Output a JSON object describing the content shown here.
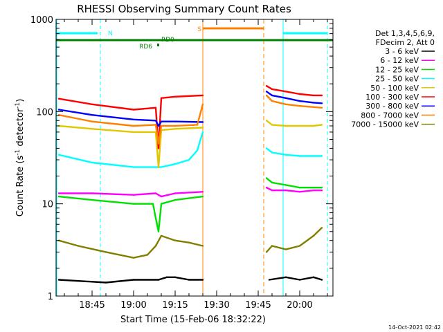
{
  "chart_data": {
    "type": "line",
    "title": "RHESSI Observing Summary Count Rates",
    "xlabel": "Start Time (15-Feb-06 18:32:22)",
    "ylabel": "Count Rate (s",
    "ylabel_sup": "-1",
    "ylabel_tail": " detector",
    "ylabel_end": ")",
    "yscale": "log",
    "ylim": [
      1,
      1000
    ],
    "xlim": [
      "18:32",
      "20:12"
    ],
    "xticks": [
      "18:45",
      "19:00",
      "19:15",
      "19:30",
      "19:45",
      "20:00"
    ],
    "yticks": [
      "1",
      "10",
      "100",
      "1000"
    ],
    "legend_header": [
      "Det 1,3,4,5,6,9,",
      "FDecim 2, Att 0"
    ],
    "legend_placement": "right",
    "series": [
      {
        "name": "3 - 6 keV",
        "color": "#000000",
        "segments": [
          {
            "x": [
              "18:33",
              "18:50",
              "19:00",
              "19:09",
              "19:12",
              "19:15",
              "19:20",
              "19:25"
            ],
            "y": [
              1.5,
              1.4,
              1.5,
              1.5,
              1.6,
              1.6,
              1.5,
              1.5
            ]
          },
          {
            "x": [
              "19:49",
              "19:55",
              "20:00",
              "20:05",
              "20:08"
            ],
            "y": [
              1.5,
              1.6,
              1.5,
              1.6,
              1.5
            ]
          }
        ]
      },
      {
        "name": "6 - 12 keV",
        "color": "#ff00ff",
        "segments": [
          {
            "x": [
              "18:33",
              "18:45",
              "19:00",
              "19:08",
              "19:10",
              "19:15",
              "19:25"
            ],
            "y": [
              13,
              13,
              12.5,
              13,
              12,
              13,
              13.5
            ]
          },
          {
            "x": [
              "19:48",
              "19:50",
              "19:55",
              "20:00",
              "20:05",
              "20:08"
            ],
            "y": [
              15,
              14,
              14,
              13.5,
              14,
              14
            ]
          }
        ]
      },
      {
        "name": "12 - 25 keV",
        "color": "#00e000",
        "segments": [
          {
            "x": [
              "18:33",
              "18:45",
              "19:00",
              "19:07",
              "19:08",
              "19:09",
              "19:10",
              "19:15",
              "19:25"
            ],
            "y": [
              12,
              11,
              10,
              10,
              7,
              5,
              10,
              11,
              12
            ]
          },
          {
            "x": [
              "19:48",
              "19:50",
              "19:55",
              "20:00",
              "20:05",
              "20:08"
            ],
            "y": [
              19,
              17,
              16,
              15,
              15,
              15
            ]
          }
        ]
      },
      {
        "name": "25 - 50 keV",
        "color": "#00ffff",
        "segments": [
          {
            "x": [
              "18:33",
              "18:45",
              "19:00",
              "19:10",
              "19:15",
              "19:20",
              "19:23",
              "19:25"
            ],
            "y": [
              34,
              28,
              25,
              25,
              27,
              30,
              38,
              60
            ]
          },
          {
            "x": [
              "19:48",
              "19:50",
              "19:55",
              "20:00",
              "20:05",
              "20:08"
            ],
            "y": [
              40,
              36,
              34,
              33,
              33,
              33
            ]
          }
        ]
      },
      {
        "name": "50 - 100 keV",
        "color": "#e0c800",
        "segments": [
          {
            "x": [
              "18:33",
              "18:45",
              "19:00",
              "19:08",
              "19:09",
              "19:10",
              "19:15",
              "19:25"
            ],
            "y": [
              70,
              65,
              60,
              60,
              25,
              63,
              65,
              67
            ]
          },
          {
            "x": [
              "19:48",
              "19:50",
              "19:55",
              "20:00",
              "20:05",
              "20:08"
            ],
            "y": [
              80,
              72,
              70,
              70,
              70,
              72
            ]
          }
        ]
      },
      {
        "name": "100 - 300 keV",
        "color": "#ff0000",
        "segments": [
          {
            "x": [
              "18:33",
              "18:45",
              "19:00",
              "19:08",
              "19:09",
              "19:10",
              "19:15",
              "19:25"
            ],
            "y": [
              138,
              120,
              105,
              110,
              40,
              140,
              145,
              150
            ]
          },
          {
            "x": [
              "19:48",
              "19:50",
              "19:55",
              "20:00",
              "20:05",
              "20:08"
            ],
            "y": [
              190,
              175,
              165,
              155,
              150,
              150
            ]
          }
        ]
      },
      {
        "name": "300 - 800 keV",
        "color": "#0000ff",
        "segments": [
          {
            "x": [
              "18:33",
              "18:45",
              "19:00",
              "19:08",
              "19:09",
              "19:10",
              "19:15",
              "19:25"
            ],
            "y": [
              105,
              92,
              82,
              80,
              70,
              78,
              78,
              77
            ]
          },
          {
            "x": [
              "19:48",
              "19:50",
              "19:55",
              "20:00",
              "20:05",
              "20:08"
            ],
            "y": [
              165,
              150,
              140,
              130,
              125,
              123
            ]
          }
        ]
      },
      {
        "name": "800 - 7000 keV",
        "color": "#ff8000",
        "segments": [
          {
            "x": [
              "18:33",
              "18:45",
              "19:00",
              "19:08",
              "19:09",
              "19:10",
              "19:15",
              "19:23",
              "19:25"
            ],
            "y": [
              92,
              78,
              70,
              72,
              45,
              70,
              70,
              72,
              120
            ]
          },
          {
            "x": [
              "19:48",
              "19:50",
              "19:55",
              "20:00",
              "20:05",
              "20:08"
            ],
            "y": [
              150,
              130,
              120,
              115,
              112,
              110
            ]
          }
        ]
      },
      {
        "name": "7000 - 15000 keV",
        "color": "#808000",
        "segments": [
          {
            "x": [
              "18:33",
              "18:40",
              "18:50",
              "19:00",
              "19:05",
              "19:08",
              "19:10",
              "19:15",
              "19:20",
              "19:25"
            ],
            "y": [
              4,
              3.5,
              3,
              2.6,
              2.8,
              3.5,
              4.5,
              4,
              3.8,
              3.5
            ]
          },
          {
            "x": [
              "19:48",
              "19:50",
              "19:55",
              "20:00",
              "20:05",
              "20:08"
            ],
            "y": [
              3,
              3.5,
              3.2,
              3.5,
              4.5,
              5.5
            ]
          }
        ]
      }
    ],
    "annotations": [
      {
        "text": "N",
        "color": "#00ffff"
      },
      {
        "text": "S",
        "color": "#ff8000"
      },
      {
        "text": "RD0",
        "color": "#008000"
      },
      {
        "text": "RD6",
        "color": "#008000"
      }
    ]
  },
  "timestamp": "14-Oct-2021 02:42"
}
